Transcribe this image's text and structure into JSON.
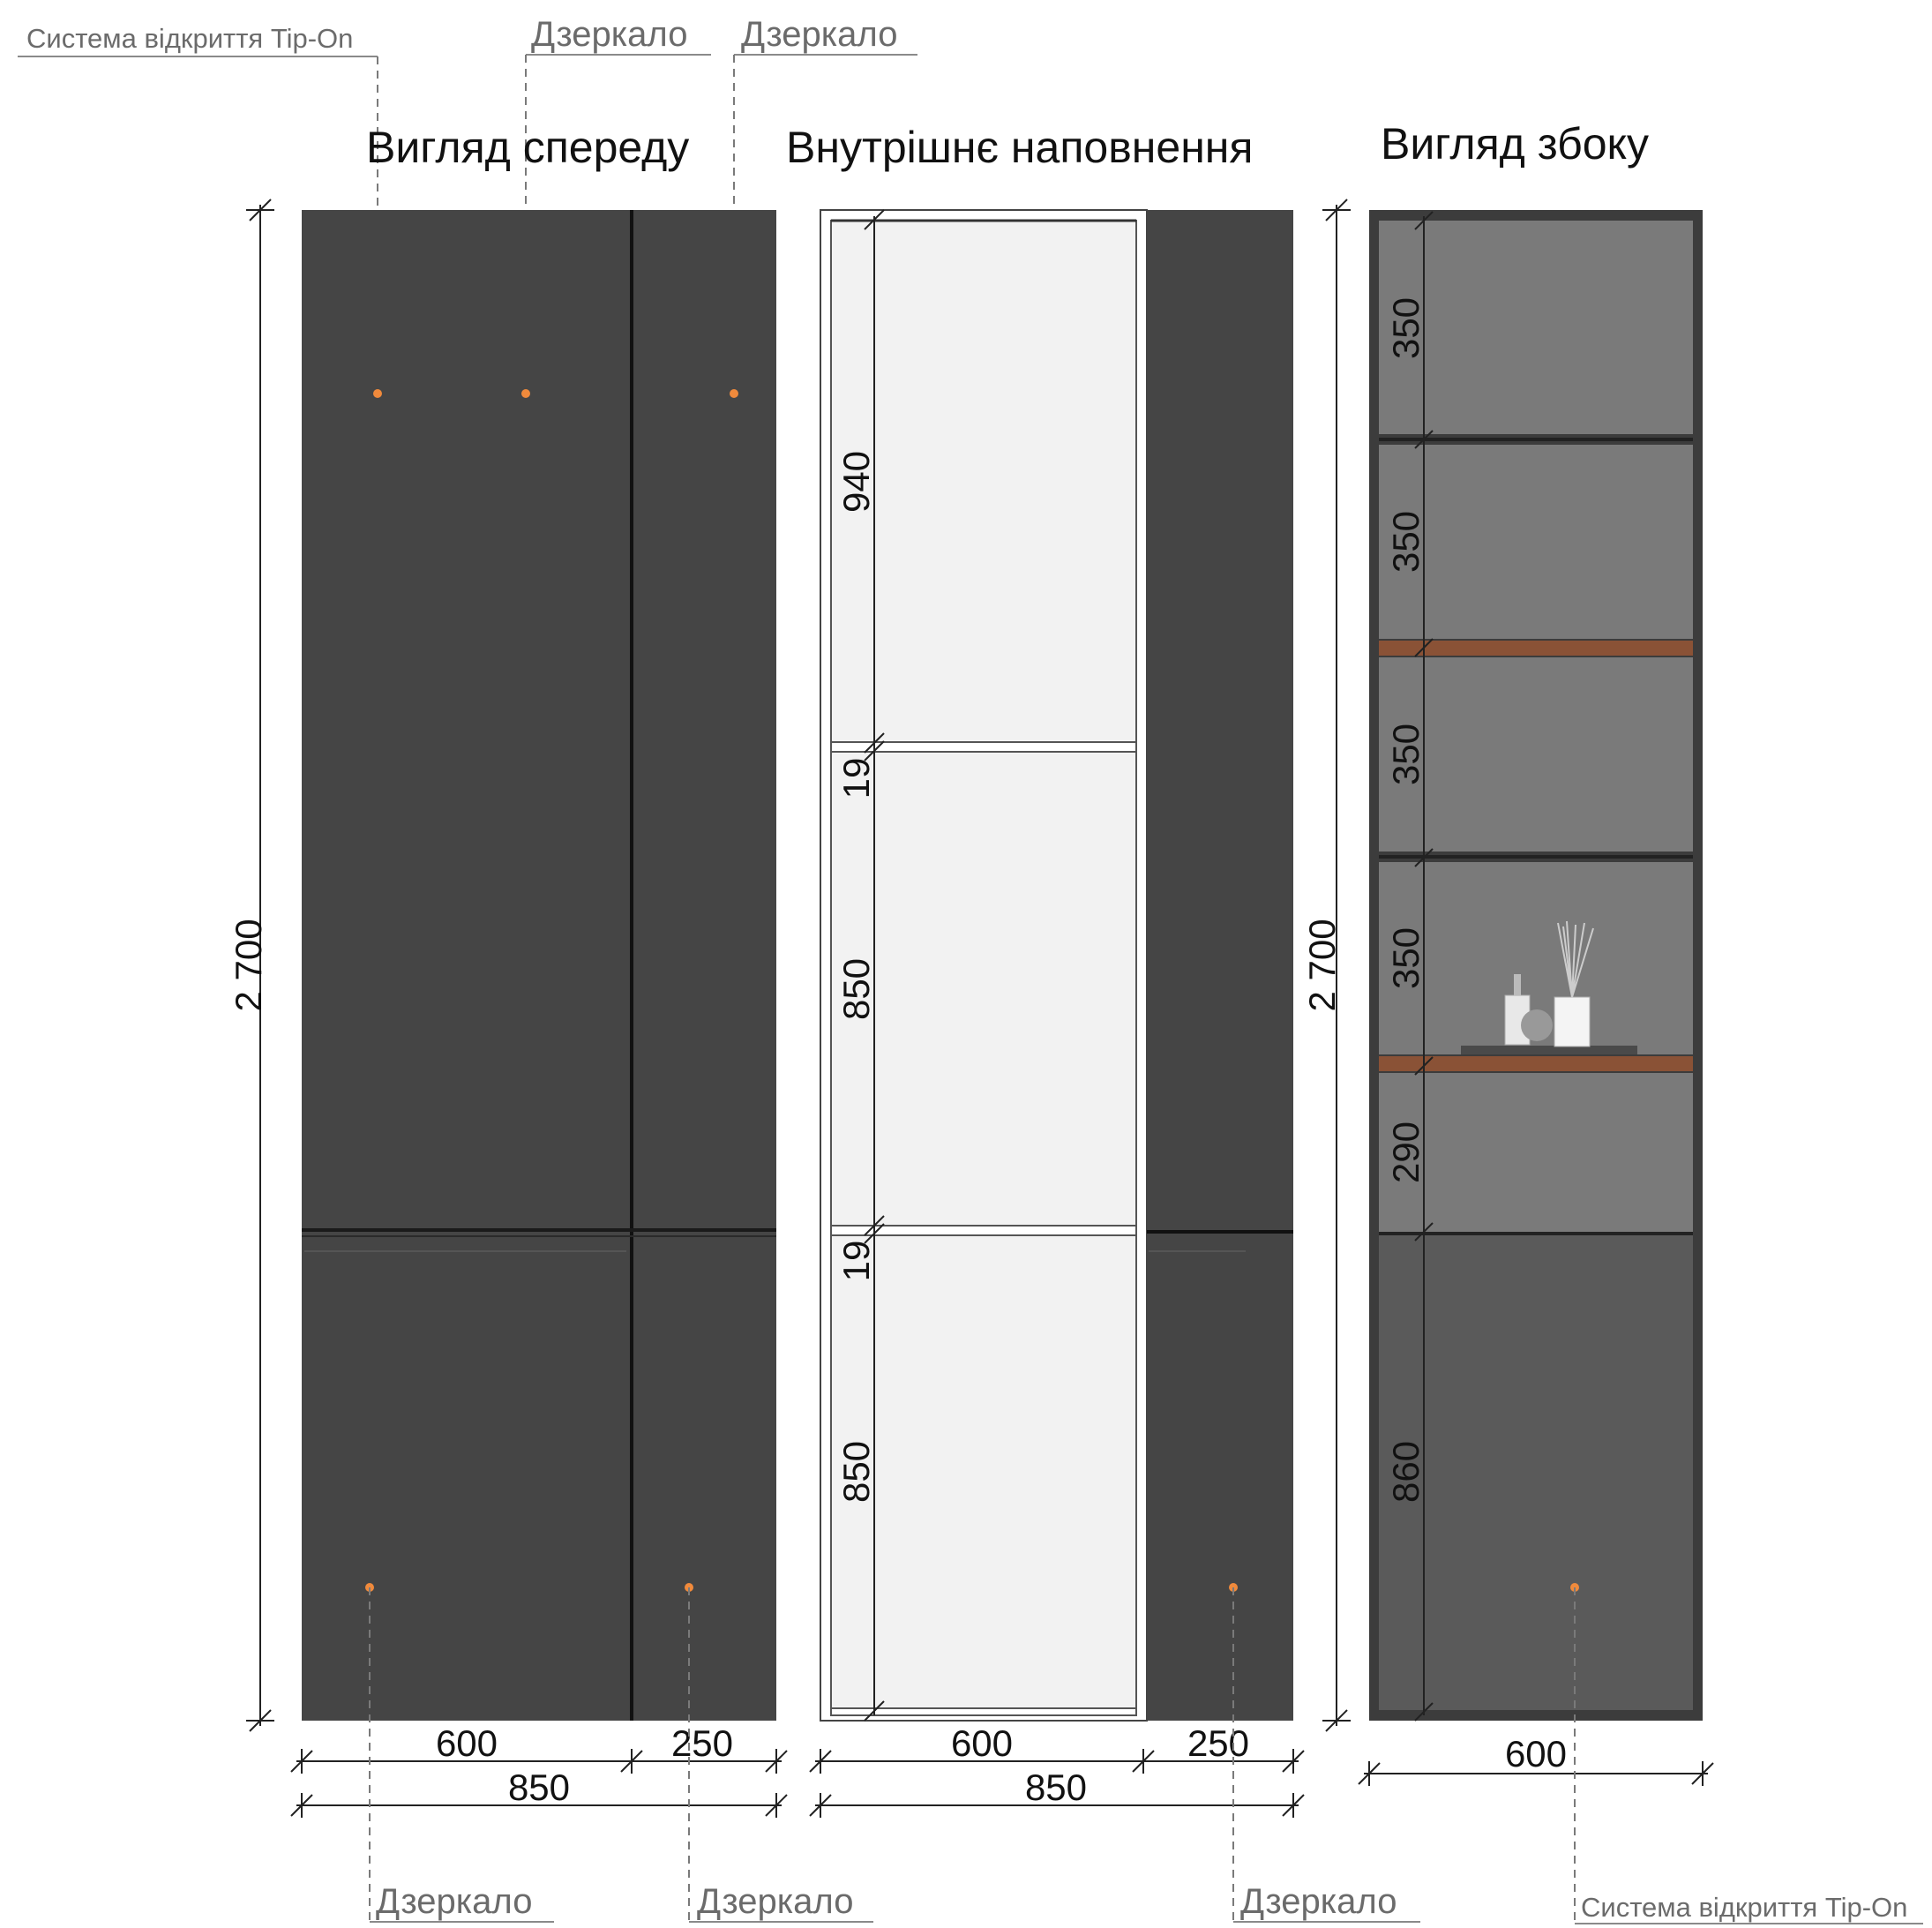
{
  "titles": {
    "front": "Вигляд спереду",
    "interior": "Внутрішнє наповнення",
    "side": "Вигляд збоку"
  },
  "callouts": {
    "tip_on_top": "Система відкриття Tip-On",
    "mirror_top_1": "Дзеркало",
    "mirror_top_2": "Дзеркало",
    "mirror_bottom_1": "Дзеркало",
    "mirror_bottom_2": "Дзеркало",
    "mirror_bottom_3": "Дзеркало",
    "tip_on_bottom": "Система відкриття Tip-On"
  },
  "dimensions": {
    "front_height": "2 700",
    "front_width_left": "600",
    "front_width_right": "250",
    "front_width_total": "850",
    "interior_width_left": "600",
    "interior_width_right": "250",
    "interior_width_total": "850",
    "interior_h1": "940",
    "interior_g1": "19",
    "interior_h2": "850",
    "interior_g2": "19",
    "interior_h3": "850",
    "side_height": "2 700",
    "side_width": "600",
    "side_s1": "350",
    "side_s2": "350",
    "side_s3": "350",
    "side_s4": "350",
    "side_s5": "290",
    "side_s6": "860"
  },
  "colors": {
    "front_panel": "#454545",
    "panel_joint": "#111111",
    "interior_board": "#f2f2f2",
    "side_shelf": "#7a7a7a",
    "side_lower": "#5a5a5a",
    "wood_shelf": "#8a5236",
    "tip_on_marker": "#f08a3c"
  }
}
